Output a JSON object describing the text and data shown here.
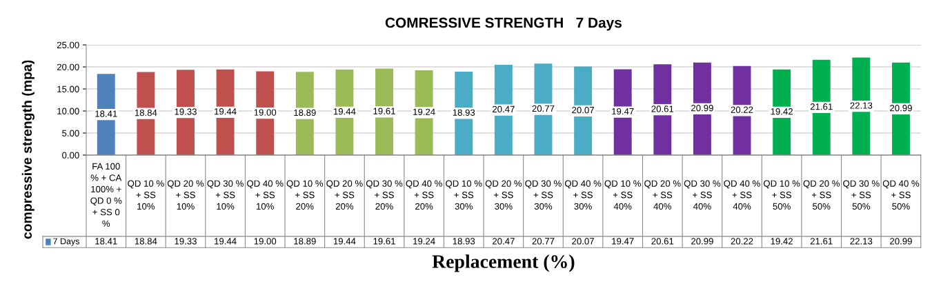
{
  "chart_data": {
    "type": "bar",
    "title": "COMRESSIVE STRENGTH   7 Days",
    "xlabel": "Replacement (%)",
    "ylabel": "compressive strength (mpa)",
    "categories": [
      "FA 100 % + CA 100% + QD 0 % + SS 0 %",
      "QD 10 % + SS 10%",
      "QD 20 % + SS 10%",
      "QD 30 % + SS 10%",
      "QD 40 % + SS 10%",
      "QD 10 % + SS 20%",
      "QD 20 % + SS 20%",
      "QD 30 % + SS 20%",
      "QD 40 % + SS 20%",
      "QD 10 % + SS 30%",
      "QD 20 % + SS 30%",
      "QD 30 % + SS 30%",
      "QD 40 % + SS 30%",
      "QD 10 % + SS 40%",
      "QD 20 % + SS 40%",
      "QD 30 % + SS 40%",
      "QD 40 % + SS 40%",
      "QD 10 % + SS 50%",
      "QD 20 % + SS 50%",
      "QD 30 % + SS 50%",
      "QD 40 % + SS 50%"
    ],
    "series": [
      {
        "name": "7 Days",
        "color": "#4f81bd",
        "colors": [
          "#4f81bd",
          "#c0504d",
          "#c0504d",
          "#c0504d",
          "#c0504d",
          "#9bbb59",
          "#9bbb59",
          "#9bbb59",
          "#9bbb59",
          "#4bacc6",
          "#4bacc6",
          "#4bacc6",
          "#4bacc6",
          "#7030a0",
          "#7030a0",
          "#7030a0",
          "#7030a0",
          "#00b050",
          "#00b050",
          "#00b050",
          "#00b050"
        ],
        "values": [
          18.41,
          18.84,
          19.33,
          19.44,
          19.0,
          18.89,
          19.44,
          19.61,
          19.24,
          18.93,
          20.47,
          20.77,
          20.07,
          19.47,
          20.61,
          20.99,
          20.22,
          19.42,
          21.61,
          22.13,
          20.99
        ],
        "value_labels": [
          "18.41",
          "18.84",
          "19.33",
          "19.44",
          "19.00",
          "18.89",
          "19.44",
          "19.61",
          "19.24",
          "18.93",
          "20.47",
          "20.77",
          "20.07",
          "19.47",
          "20.61",
          "20.99",
          "20.22",
          "19.42",
          "21.61",
          "22.13",
          "20.99"
        ]
      }
    ],
    "ylim": [
      0,
      25
    ],
    "yticks": [
      {
        "value": 0,
        "label": "0.00"
      },
      {
        "value": 5,
        "label": "5.00"
      },
      {
        "value": 10,
        "label": "10.00"
      },
      {
        "value": 15,
        "label": "15.00"
      },
      {
        "value": 20,
        "label": "20.00"
      },
      {
        "value": 25,
        "label": "25.00"
      }
    ],
    "grid": "y",
    "data_labels": true
  }
}
